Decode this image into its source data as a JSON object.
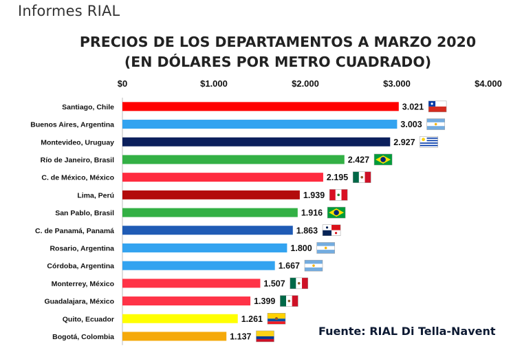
{
  "header": {
    "label": "Informes RIAL"
  },
  "chart_data": {
    "type": "bar",
    "orientation": "horizontal",
    "title": "PRECIOS DE LOS DEPARTAMENTOS A MARZO 2020",
    "subtitle": "(EN DÓLARES POR METRO CUADRADO)",
    "xlim": [
      0,
      4000
    ],
    "xticks": [
      0,
      1000,
      2000,
      3000,
      4000
    ],
    "xtick_labels": [
      "$0",
      "$1.000",
      "$2.000",
      "$3.000",
      "$4.000"
    ],
    "x_axis_position": "top",
    "grid": false,
    "categories": [
      "Santiago, Chile",
      "Buenos Aires, Argentina",
      "Montevideo, Uruguay",
      "Río de Janeiro, Brasil",
      "C. de México, México",
      "Lima, Perú",
      "San Pablo, Brasil",
      "C. de Panamá, Panamá",
      "Rosario, Argentina",
      "Córdoba, Argentina",
      "Monterrey, México",
      "Guadalajara, México",
      "Quito, Ecuador",
      "Bogotá, Colombia"
    ],
    "values": [
      3021,
      3003,
      2927,
      2427,
      2195,
      1939,
      1916,
      1863,
      1800,
      1667,
      1507,
      1399,
      1261,
      1137
    ],
    "value_labels": [
      "3.021",
      "3.003",
      "2.927",
      "2.427",
      "2.195",
      "1.939",
      "1.916",
      "1.863",
      "1.800",
      "1.667",
      "1.507",
      "1.399",
      "1.261",
      "1.137"
    ],
    "bar_colors": [
      "#ff0000",
      "#33a3f0",
      "#0b1f5c",
      "#33b045",
      "#ff2b3f",
      "#b30b0b",
      "#33b045",
      "#1f5bb5",
      "#33a3f0",
      "#33a3f0",
      "#ff3347",
      "#ff3347",
      "#ffff00",
      "#f5a90a"
    ],
    "flags": [
      "chile",
      "argentina",
      "uruguay",
      "brazil",
      "mexico",
      "peru",
      "brazil",
      "panama",
      "argentina",
      "argentina",
      "mexico",
      "mexico",
      "ecuador",
      "colombia"
    ]
  },
  "source": "Fuente: RIAL Di Tella-Navent"
}
